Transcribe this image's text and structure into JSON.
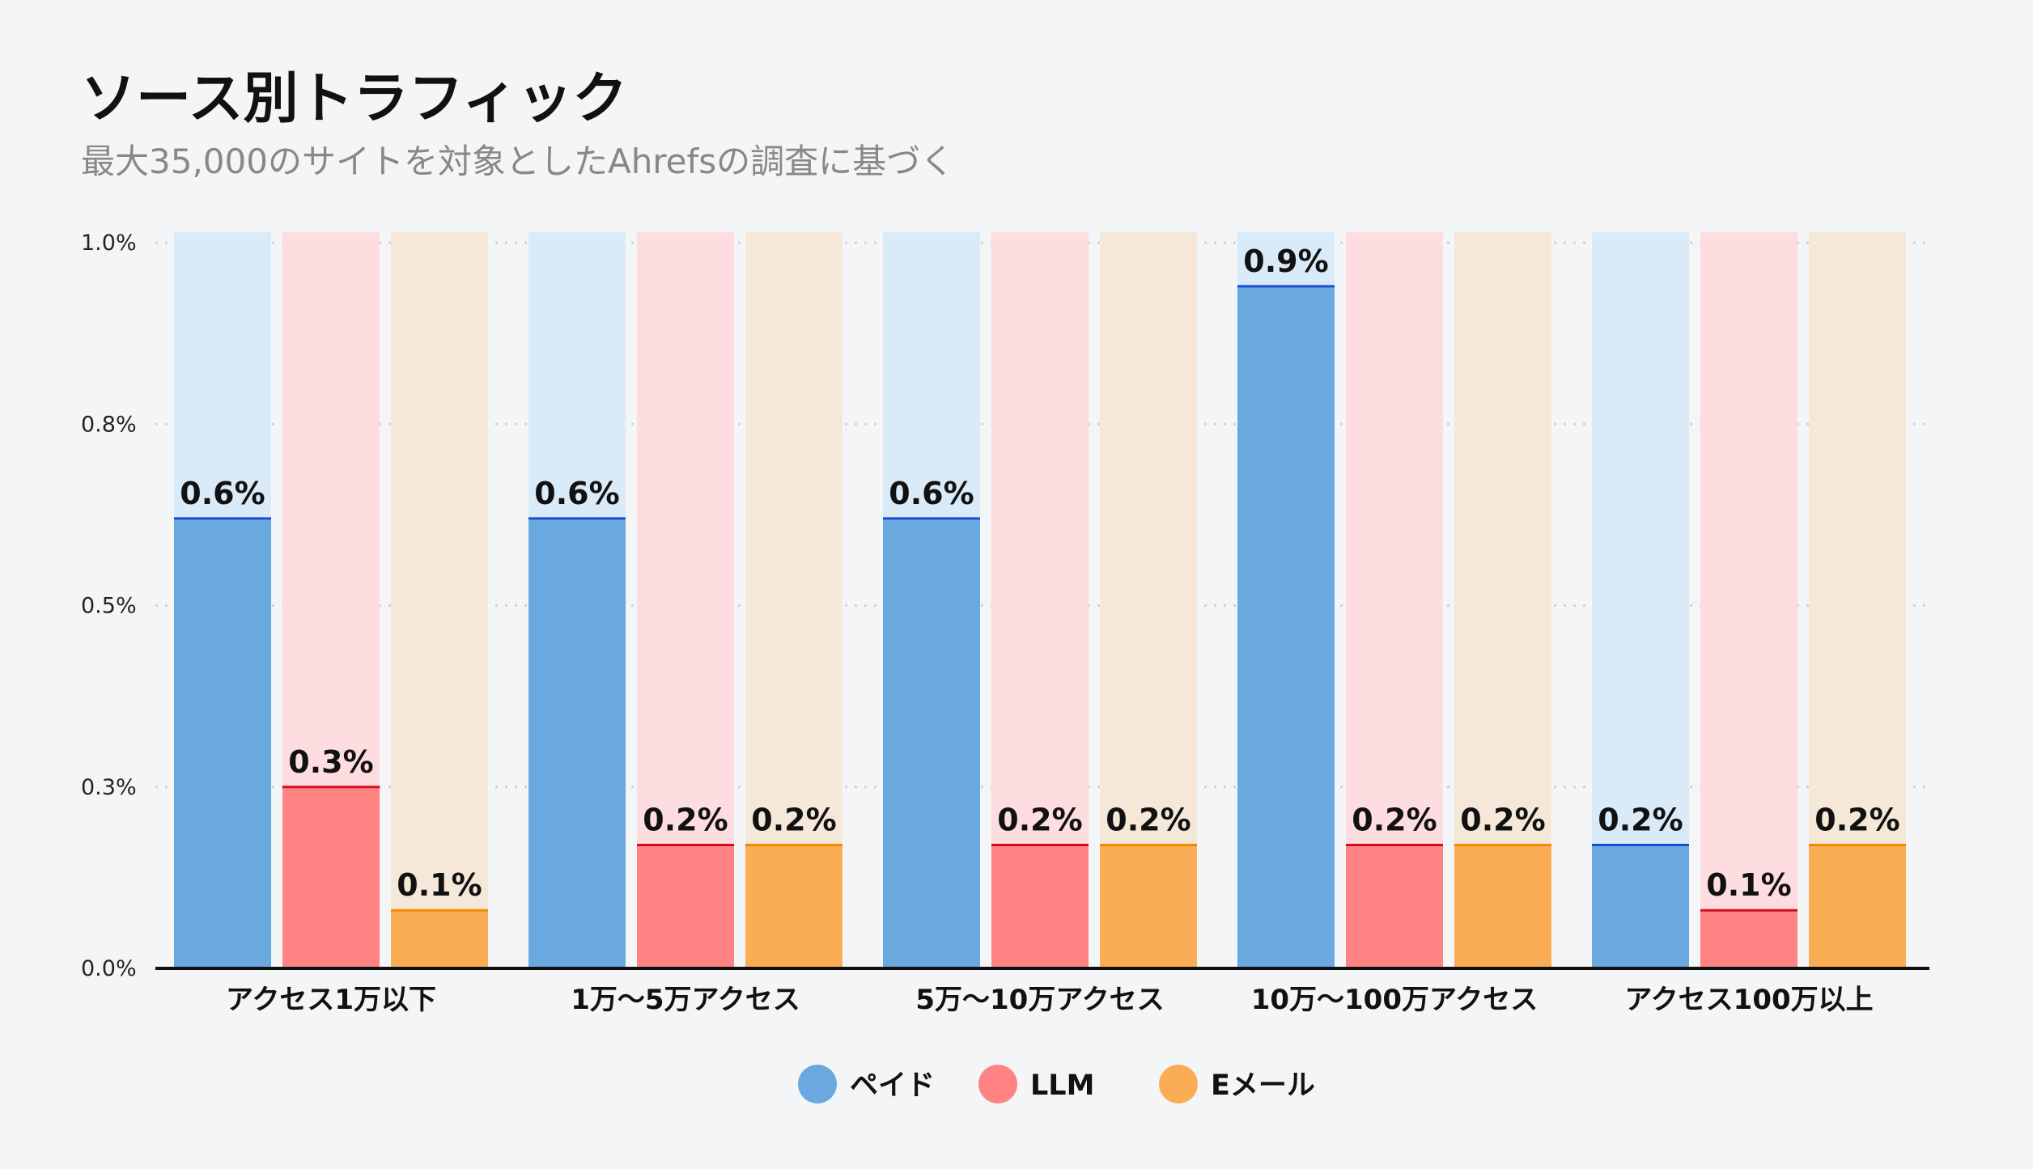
{
  "chart_data": {
    "type": "bar",
    "title": "ソース別トラフィック",
    "subtitle": "最大35,000のサイトを対象としたAhrefsの調査に基づく",
    "categories": [
      "アクセス1万以下",
      "1万〜5万アクセス",
      "5万〜10万アクセス",
      "10万〜100万アクセス",
      "アクセス100万以上"
    ],
    "series": [
      {
        "name": "ペイド",
        "color": "#6aa8e0",
        "bg": "#d9eaf8",
        "line": "#1a4fd6",
        "values": [
          0.62,
          0.62,
          0.62,
          0.94,
          0.17
        ],
        "labels": [
          "0.6%",
          "0.6%",
          "0.6%",
          "0.9%",
          "0.2%"
        ]
      },
      {
        "name": "LLM",
        "color": "#ff8383",
        "bg": "#fddde0",
        "line": "#d01020",
        "values": [
          0.25,
          0.17,
          0.17,
          0.17,
          0.08
        ],
        "labels": [
          "0.3%",
          "0.2%",
          "0.2%",
          "0.2%",
          "0.1%"
        ]
      },
      {
        "name": "Eメール",
        "color": "#fbad55",
        "bg": "#f5e8d8",
        "line": "#f08a00",
        "values": [
          0.08,
          0.17,
          0.17,
          0.17,
          0.17
        ],
        "labels": [
          "0.1%",
          "0.2%",
          "0.2%",
          "0.2%",
          "0.2%"
        ]
      }
    ],
    "yticks": [
      0,
      0.25,
      0.5,
      0.75,
      1.0
    ],
    "ytick_labels": [
      "0.0%",
      "0.3%",
      "0.5%",
      "0.8%",
      "1.0%"
    ],
    "ylim": [
      0,
      1.0
    ],
    "ylabel": "",
    "xlabel": "",
    "grid": "horizontal dotted",
    "legend": "bottom-center"
  }
}
